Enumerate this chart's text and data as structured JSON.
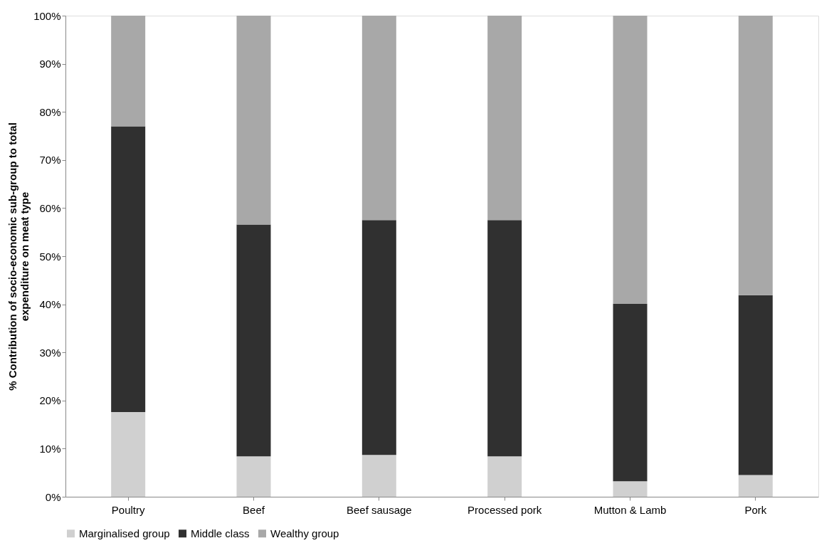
{
  "chart_data": {
    "type": "bar",
    "stacked": true,
    "ylabel": "% Contribution of socio-economic sub-group to total expenditure on meat type",
    "categories": [
      "Poultry",
      "Beef",
      "Beef sausage",
      "Processed pork",
      "Mutton & Lamb",
      "Pork"
    ],
    "series": [
      {
        "name": "Marginalised group",
        "color": "#d0d0d0",
        "values": [
          17.6,
          8.4,
          8.7,
          8.4,
          3.2,
          4.5
        ]
      },
      {
        "name": "Middle class",
        "color": "#303030",
        "values": [
          59.4,
          48.2,
          48.8,
          49.1,
          36.9,
          37.4
        ]
      },
      {
        "name": "Wealthy group",
        "color": "#a8a8a8",
        "values": [
          23.0,
          43.4,
          42.5,
          42.5,
          59.9,
          58.1
        ]
      }
    ],
    "ylim": [
      0,
      100
    ],
    "yticks": [
      {
        "value": 0,
        "label": "0%"
      },
      {
        "value": 10,
        "label": "10%"
      },
      {
        "value": 20,
        "label": "20%"
      },
      {
        "value": 30,
        "label": "30%"
      },
      {
        "value": 40,
        "label": "40%"
      },
      {
        "value": 50,
        "label": "50%"
      },
      {
        "value": 60,
        "label": "60%"
      },
      {
        "value": 70,
        "label": "70%"
      },
      {
        "value": 80,
        "label": "80%"
      },
      {
        "value": 90,
        "label": "90%"
      },
      {
        "value": 100,
        "label": "100%"
      }
    ],
    "grid": false,
    "legend": "bottom"
  }
}
